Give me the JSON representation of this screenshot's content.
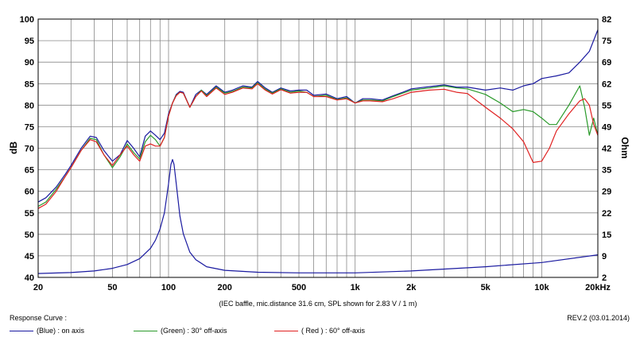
{
  "chart_data": {
    "type": "line",
    "x_scale": "log",
    "xlim": [
      20,
      20000
    ],
    "ylim": [
      40,
      100
    ],
    "y2lim": [
      2,
      82
    ],
    "ylabel": "dB",
    "y2label": "Ohm",
    "x_tick_labels": [
      {
        "x": 20,
        "label": "20"
      },
      {
        "x": 50,
        "label": "50"
      },
      {
        "x": 100,
        "label": "100"
      },
      {
        "x": 200,
        "label": "200"
      },
      {
        "x": 500,
        "label": "500"
      },
      {
        "x": 1000,
        "label": "1k"
      },
      {
        "x": 2000,
        "label": "2k"
      },
      {
        "x": 5000,
        "label": "5k"
      },
      {
        "x": 10000,
        "label": "10k"
      },
      {
        "x": 20000,
        "label": "20kHz"
      }
    ],
    "y_ticks": [
      40,
      45,
      50,
      55,
      60,
      65,
      70,
      75,
      80,
      85,
      90,
      95,
      100
    ],
    "y2_tick_labels": [
      "2",
      "9",
      "15",
      "22",
      "29",
      "35",
      "42",
      "49",
      "55",
      "62",
      "69",
      "75",
      "82"
    ],
    "grid": true,
    "series": [
      {
        "name": "on axis",
        "color": "#1a1aa0",
        "axis": "left",
        "x": [
          20,
          22,
          25,
          28,
          30,
          34,
          38,
          41,
          45,
          50,
          55,
          60,
          65,
          70,
          75,
          80,
          85,
          90,
          95,
          100,
          105,
          110,
          115,
          120,
          130,
          140,
          150,
          160,
          180,
          200,
          220,
          250,
          280,
          300,
          330,
          360,
          400,
          450,
          500,
          550,
          600,
          700,
          800,
          900,
          1000,
          1100,
          1200,
          1400,
          1600,
          1800,
          2000,
          2500,
          3000,
          3500,
          4000,
          5000,
          6000,
          7000,
          8000,
          9000,
          10000,
          12000,
          14000,
          16000,
          18000,
          20000
        ],
        "values": [
          57.5,
          58.5,
          61,
          64,
          66,
          70,
          72.8,
          72.5,
          69.5,
          67,
          68.5,
          71.8,
          70,
          68,
          72.8,
          74,
          73,
          72,
          73.5,
          78,
          80.5,
          82.5,
          83.2,
          83,
          79.5,
          82.5,
          83.5,
          82.5,
          84.5,
          83,
          83.5,
          84.5,
          84.2,
          85.5,
          84,
          83,
          84,
          83.3,
          83.5,
          83.5,
          82.3,
          82.6,
          81.5,
          82,
          80.5,
          81.5,
          81.5,
          81.2,
          82.2,
          83,
          83.8,
          84.3,
          84.7,
          84.2,
          84.2,
          83.5,
          84,
          83.5,
          84.5,
          85,
          86.2,
          86.8,
          87.5,
          90,
          92.5,
          97.5
        ]
      },
      {
        "name": "30° off-axis",
        "color": "#2a9a2a",
        "axis": "left",
        "x": [
          20,
          22,
          25,
          28,
          30,
          34,
          38,
          41,
          45,
          50,
          55,
          60,
          65,
          70,
          75,
          80,
          85,
          90,
          95,
          100,
          105,
          110,
          115,
          120,
          130,
          140,
          150,
          160,
          180,
          200,
          220,
          250,
          280,
          300,
          330,
          360,
          400,
          450,
          500,
          550,
          600,
          700,
          800,
          900,
          1000,
          1100,
          1200,
          1400,
          1600,
          1800,
          2000,
          2500,
          3000,
          3500,
          4000,
          5000,
          6000,
          7000,
          8000,
          9000,
          10000,
          11000,
          12000,
          14000,
          16000,
          17000,
          18000,
          19000,
          20000
        ],
        "values": [
          56.5,
          57.5,
          60.5,
          63.5,
          65.5,
          69.5,
          72.3,
          72,
          68.5,
          65.5,
          68,
          71,
          69,
          67.5,
          71.5,
          73,
          72,
          70.5,
          72.5,
          77.5,
          80.5,
          82.3,
          83,
          82.8,
          79.5,
          82,
          83.5,
          82.2,
          84.2,
          82.8,
          83.2,
          84.2,
          84,
          85.2,
          83.7,
          82.8,
          83.8,
          83,
          83.3,
          83,
          82,
          82.3,
          81.3,
          81.7,
          80.5,
          81.2,
          81.2,
          81,
          82,
          82.8,
          83.5,
          84,
          84.5,
          84,
          83.8,
          82.5,
          80.5,
          78.5,
          79,
          78.5,
          77,
          75.5,
          75.5,
          80,
          84.5,
          79.5,
          73,
          77,
          73
        ]
      },
      {
        "name": "60° off-axis",
        "color": "#e02020",
        "axis": "left",
        "x": [
          20,
          22,
          25,
          28,
          30,
          34,
          38,
          41,
          45,
          50,
          55,
          60,
          65,
          70,
          75,
          80,
          85,
          90,
          95,
          100,
          105,
          110,
          115,
          120,
          130,
          140,
          150,
          160,
          180,
          200,
          220,
          250,
          280,
          300,
          330,
          360,
          400,
          450,
          500,
          550,
          600,
          700,
          800,
          900,
          1000,
          1100,
          1200,
          1400,
          1600,
          1800,
          2000,
          2500,
          3000,
          3500,
          4000,
          5000,
          6000,
          7000,
          8000,
          8500,
          9000,
          10000,
          11000,
          12000,
          14000,
          16000,
          17000,
          18000,
          19000,
          20000
        ],
        "values": [
          56,
          57,
          60,
          63.5,
          65.5,
          69.5,
          72,
          71.5,
          68.5,
          66,
          68.5,
          70.5,
          68.5,
          67,
          70.5,
          71,
          70.5,
          70.5,
          72.5,
          77.5,
          80.5,
          82.2,
          83,
          82.8,
          79.5,
          82,
          83.3,
          82,
          84,
          82.5,
          83,
          84,
          83.8,
          85,
          83.5,
          82.6,
          83.6,
          82.8,
          83,
          83,
          82,
          82,
          81.2,
          81.5,
          80.5,
          81,
          81,
          80.8,
          81.5,
          82.3,
          83,
          83.5,
          83.7,
          83,
          82.7,
          79.5,
          77,
          74.5,
          71.5,
          69,
          66.7,
          67,
          70,
          74,
          78,
          81,
          81.5,
          80,
          75.5,
          73
        ]
      },
      {
        "name": "impedance",
        "color": "#1a1aa0",
        "axis": "right",
        "x": [
          20,
          30,
          40,
          50,
          60,
          70,
          80,
          85,
          90,
          95,
          100,
          103,
          105,
          107,
          110,
          115,
          120,
          130,
          140,
          160,
          200,
          300,
          500,
          1000,
          2000,
          5000,
          10000,
          20000
        ],
        "values": [
          3.2,
          3.5,
          4,
          4.8,
          6,
          7.8,
          11,
          13.5,
          17,
          22,
          31,
          37,
          38.5,
          37,
          31,
          21,
          15.5,
          9.8,
          7.5,
          5.3,
          4.2,
          3.6,
          3.4,
          3.4,
          4,
          5.3,
          6.6,
          9
        ]
      }
    ]
  },
  "note": "(IEC baffle, mic.distance 31.6 cm, SPL shown for 2.83 V / 1 m)",
  "revision": "REV.2 (03.01.2014)",
  "footer": {
    "title": "Response Curve :",
    "legend": [
      {
        "text": "(Blue)  : on axis",
        "color": "#1a1aa0"
      },
      {
        "text": "(Green) : 30° off-axis",
        "color": "#2a9a2a"
      },
      {
        "text": "( Red ) : 60° off-axis",
        "color": "#e02020"
      }
    ]
  }
}
